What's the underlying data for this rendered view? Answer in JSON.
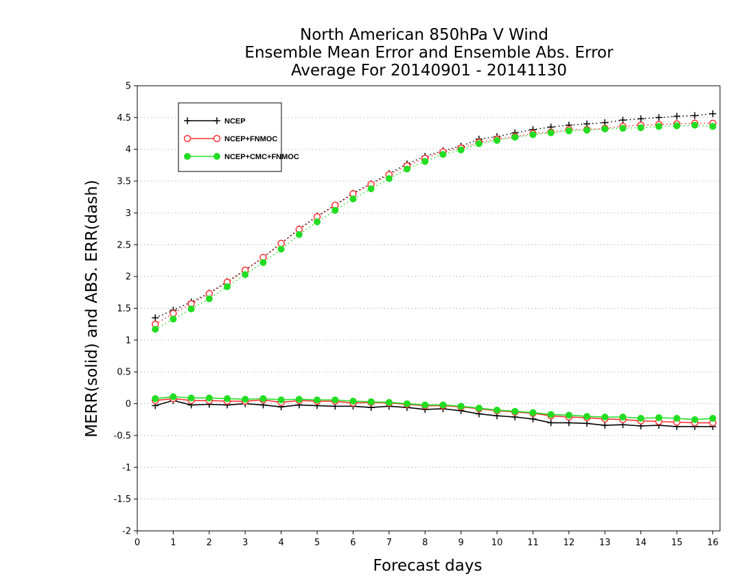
{
  "chart_data": {
    "type": "line",
    "title": [
      "North American 850hPa V Wind",
      "Ensemble Mean Error and Ensemble Abs. Error",
      "Average For 20140901 - 20141130"
    ],
    "xlabel": "Forecast days",
    "ylabel": "MERR(solid) and ABS. ERR(dash)",
    "xlim": [
      0,
      16.2
    ],
    "ylim": [
      -2,
      5
    ],
    "xticks": [
      0,
      1,
      2,
      3,
      4,
      5,
      6,
      7,
      8,
      9,
      10,
      11,
      12,
      13,
      14,
      15,
      16
    ],
    "yticks": [
      -2,
      -1.5,
      -1,
      -0.5,
      0,
      0.5,
      1,
      1.5,
      2,
      2.5,
      3,
      3.5,
      4,
      4.5,
      5
    ],
    "ytick_labels": [
      "-2",
      "-1.5",
      "-1",
      "-0.5",
      "0",
      "0.5",
      "1",
      "1.5",
      "2",
      "2.5",
      "3",
      "3.5",
      "4",
      "4.5",
      "5"
    ],
    "grid": "horizontal dotted",
    "legend_position": "top-left",
    "x": [
      0.5,
      1,
      1.5,
      2,
      2.5,
      3,
      3.5,
      4,
      4.5,
      5,
      5.5,
      6,
      6.5,
      7,
      7.5,
      8,
      8.5,
      9,
      9.5,
      10,
      10.5,
      11,
      11.5,
      12,
      12.5,
      13,
      13.5,
      14,
      14.5,
      15,
      15.5,
      16
    ],
    "series": [
      {
        "name": "NCEP",
        "color": "#000000",
        "marker": "plus",
        "abs_err": [
          1.35,
          1.47,
          1.6,
          1.74,
          1.92,
          2.1,
          2.3,
          2.52,
          2.75,
          2.95,
          3.12,
          3.31,
          3.46,
          3.62,
          3.77,
          3.89,
          3.98,
          4.05,
          4.16,
          4.2,
          4.26,
          4.31,
          4.35,
          4.38,
          4.4,
          4.42,
          4.46,
          4.48,
          4.5,
          4.52,
          4.53,
          4.56
        ],
        "mean_err": [
          -0.03,
          0.05,
          -0.02,
          -0.01,
          -0.02,
          0.0,
          -0.02,
          -0.05,
          -0.02,
          -0.03,
          -0.04,
          -0.04,
          -0.06,
          -0.04,
          -0.06,
          -0.09,
          -0.08,
          -0.11,
          -0.16,
          -0.19,
          -0.21,
          -0.24,
          -0.3,
          -0.3,
          -0.31,
          -0.34,
          -0.33,
          -0.35,
          -0.34,
          -0.36,
          -0.36,
          -0.36
        ]
      },
      {
        "name": "NCEP+FNMOC",
        "color": "#ff3030",
        "marker": "open-circle",
        "abs_err": [
          1.25,
          1.42,
          1.57,
          1.73,
          1.91,
          2.1,
          2.3,
          2.52,
          2.74,
          2.94,
          3.12,
          3.3,
          3.45,
          3.6,
          3.74,
          3.86,
          3.96,
          4.02,
          4.11,
          4.16,
          4.2,
          4.25,
          4.27,
          4.31,
          4.31,
          4.33,
          4.36,
          4.38,
          4.39,
          4.4,
          4.41,
          4.41
        ],
        "mean_err": [
          0.05,
          0.08,
          0.05,
          0.05,
          0.04,
          0.04,
          0.06,
          0.02,
          0.05,
          0.04,
          0.04,
          0.01,
          0.02,
          0.01,
          -0.01,
          -0.03,
          -0.03,
          -0.05,
          -0.08,
          -0.11,
          -0.13,
          -0.15,
          -0.19,
          -0.21,
          -0.22,
          -0.24,
          -0.25,
          -0.27,
          -0.28,
          -0.29,
          -0.3,
          -0.3
        ]
      },
      {
        "name": "NCEP+CMC+FNMOC",
        "color": "#22dd22",
        "marker": "filled-circle",
        "abs_err": [
          1.17,
          1.33,
          1.49,
          1.65,
          1.84,
          2.03,
          2.22,
          2.43,
          2.66,
          2.86,
          3.04,
          3.22,
          3.38,
          3.54,
          3.69,
          3.81,
          3.92,
          3.99,
          4.09,
          4.14,
          4.19,
          4.23,
          4.26,
          4.29,
          4.3,
          4.32,
          4.33,
          4.34,
          4.36,
          4.37,
          4.38,
          4.36
        ],
        "mean_err": [
          0.08,
          0.11,
          0.09,
          0.09,
          0.08,
          0.07,
          0.08,
          0.06,
          0.07,
          0.06,
          0.06,
          0.04,
          0.03,
          0.02,
          0.0,
          -0.02,
          -0.02,
          -0.04,
          -0.07,
          -0.1,
          -0.12,
          -0.14,
          -0.17,
          -0.18,
          -0.2,
          -0.21,
          -0.21,
          -0.23,
          -0.22,
          -0.23,
          -0.25,
          -0.23
        ]
      }
    ]
  }
}
